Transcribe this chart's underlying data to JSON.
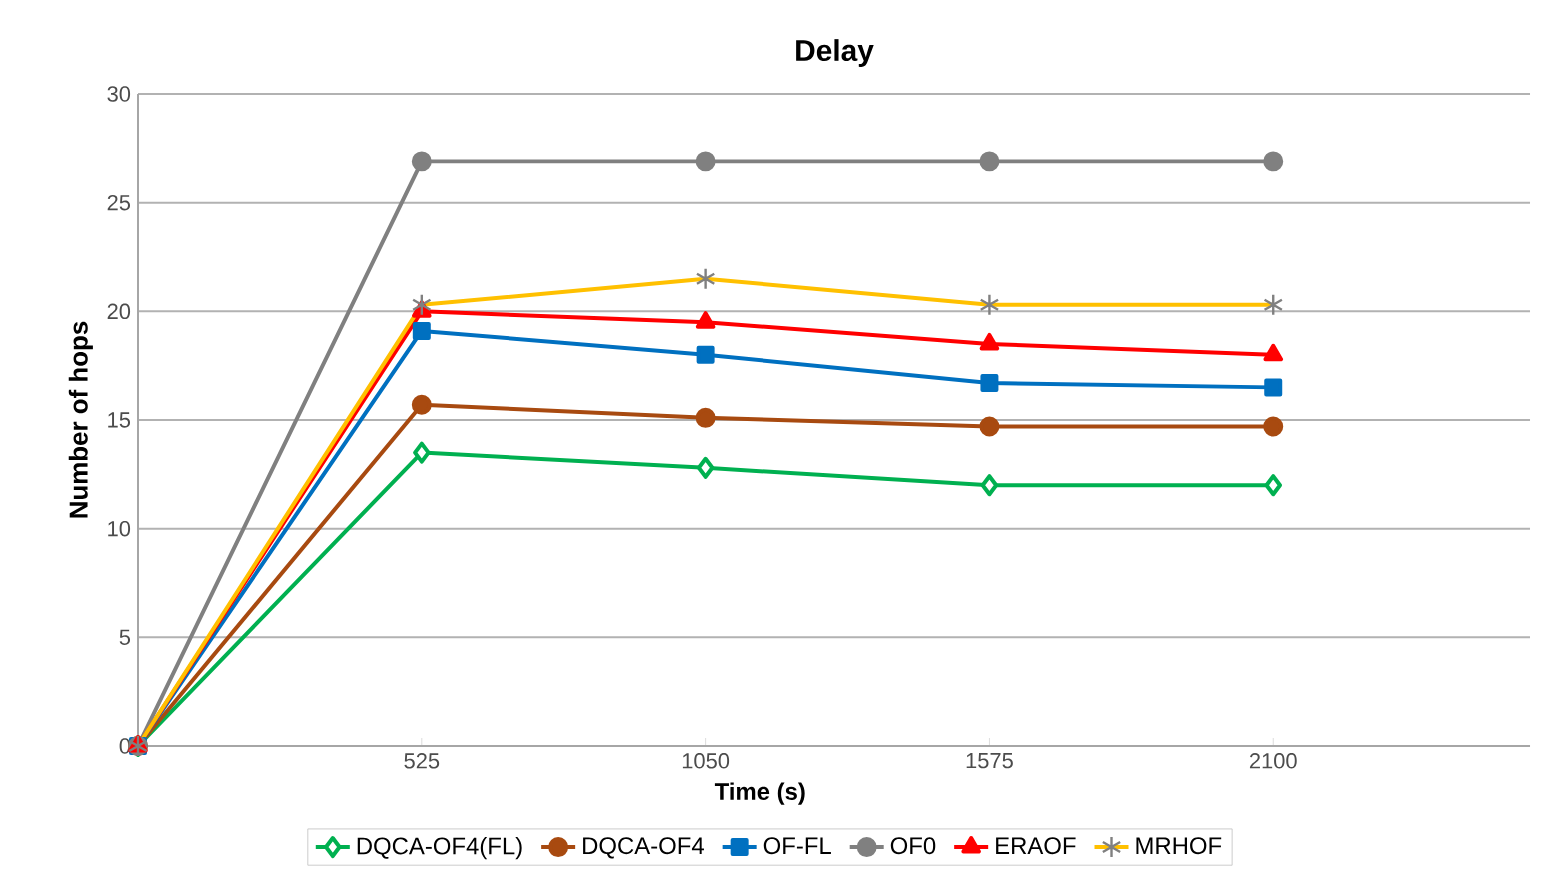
{
  "chart_data": {
    "type": "line",
    "title": "Delay",
    "xlabel": "Time (s)",
    "ylabel": "Number of hops",
    "x": [
      0,
      525,
      1050,
      1575,
      2100
    ],
    "xlim": [
      0,
      2575
    ],
    "xticks": [
      525,
      1050,
      1575,
      2100
    ],
    "ylim": [
      0,
      30
    ],
    "yticks": [
      0,
      5,
      10,
      15,
      20,
      25,
      30
    ],
    "grid": "y",
    "legend": "bottom",
    "series": [
      {
        "name": "DQCA-OF4(FL)",
        "color": "#00b050",
        "marker": "diamond",
        "values": [
          0,
          13.5,
          12.8,
          12.0,
          12.0
        ]
      },
      {
        "name": "DQCA-OF4",
        "color": "#a84a10",
        "marker": "circle",
        "values": [
          0,
          15.7,
          15.1,
          14.7,
          14.7
        ]
      },
      {
        "name": "OF-FL",
        "color": "#0070c0",
        "marker": "square",
        "values": [
          0,
          19.1,
          18.0,
          16.7,
          16.5
        ]
      },
      {
        "name": "OF0",
        "color": "#808080",
        "marker": "circle",
        "values": [
          0,
          26.9,
          26.9,
          26.9,
          26.9
        ]
      },
      {
        "name": "ERAOF",
        "color": "#ff0000",
        "marker": "triangle",
        "values": [
          0,
          20.0,
          19.5,
          18.5,
          18.0
        ]
      },
      {
        "name": "MRHOF",
        "color": "#ffc000",
        "marker": "cross",
        "values": [
          0,
          20.3,
          21.5,
          20.3,
          20.3
        ]
      }
    ]
  }
}
